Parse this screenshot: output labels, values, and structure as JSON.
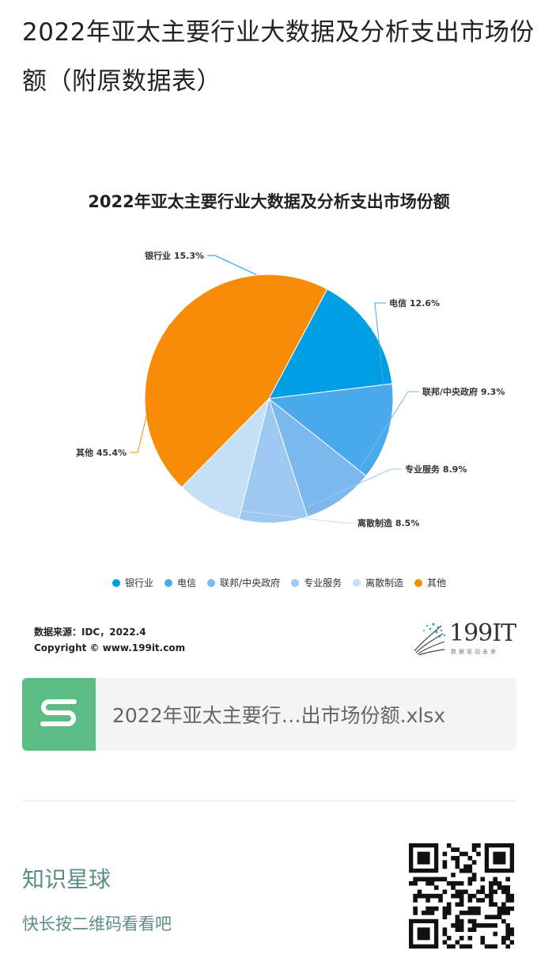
{
  "page": {
    "title": "2022年亚太主要行业大数据及分析支出市场份额（附原数据表）"
  },
  "chart_data": {
    "type": "pie",
    "title": "2022年亚太主要行业大数据及分析支出市场份额",
    "categories": [
      "银行业",
      "电信",
      "联邦/中央政府",
      "专业服务",
      "离散制造",
      "其他"
    ],
    "values": [
      15.3,
      12.6,
      9.3,
      8.9,
      8.5,
      45.4
    ],
    "data_labels": [
      "银行业 15.3%",
      "电信 12.6%",
      "联邦/中央政府 9.3%",
      "专业服务 8.9%",
      "离散制造 8.5%",
      "其他 45.4%"
    ],
    "colors": [
      "#009fe3",
      "#4aa9ea",
      "#7ab8ee",
      "#9dc8f0",
      "#c5dff6",
      "#f98c07"
    ],
    "legend_position": "bottom"
  },
  "source": {
    "line1": "数据来源：IDC，2022.4",
    "line2": "Copyright © www.199it.com"
  },
  "brand": {
    "name": "199IT",
    "tagline": "数据驱动未来"
  },
  "attachment": {
    "icon": "spreadsheet-s-icon",
    "file_name": "2022年亚太主要行…出市场份额.xlsx",
    "color": "#5cbd84"
  },
  "promo": {
    "title": "知识星球",
    "subtitle": "快长按二维码看看吧"
  }
}
